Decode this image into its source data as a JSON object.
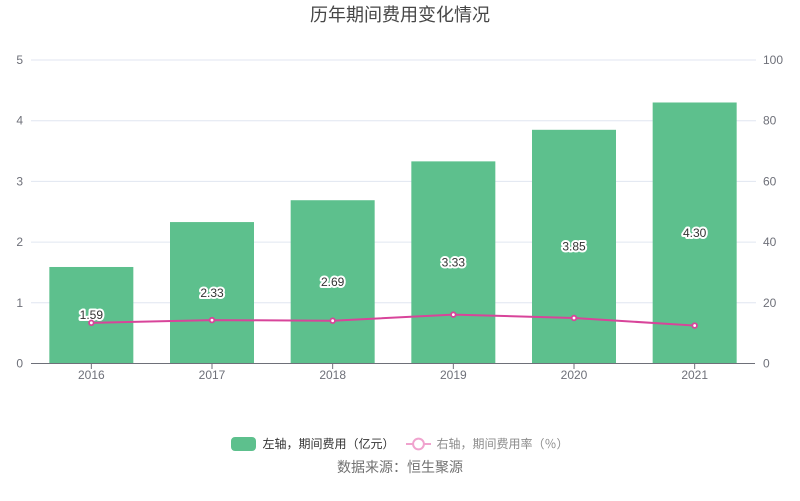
{
  "title": "历年期间费用变化情况",
  "source_note": "数据来源：恒生聚源",
  "colors": {
    "bar": "#5dc08d",
    "line": "#d8449a",
    "line_marker_fill": "#ffffff",
    "legend_line_icon": "#f0a3ce",
    "grid_line": "#e0e6f1",
    "axis_line": "#6e7079",
    "axis_label": "#6e7079",
    "title_text": "#464646",
    "bar_value_label": "#333333",
    "legend_text_bar": "#333333",
    "legend_text_line": "#8c8c8c",
    "source_text": "#717171"
  },
  "legend": {
    "items": [
      {
        "label": "左轴，期间费用（亿元）",
        "icon": "bar-swatch"
      },
      {
        "label": "右轴，期间费用率（％）",
        "icon": "line-marker"
      }
    ]
  },
  "chart_data": {
    "type": "bar+line",
    "title": "历年期间费用变化情况",
    "categories": [
      "2016",
      "2017",
      "2018",
      "2019",
      "2020",
      "2021"
    ],
    "series": [
      {
        "name": "左轴，期间费用（亿元）",
        "type": "bar",
        "axis": "left",
        "values": [
          1.59,
          2.33,
          2.69,
          3.33,
          3.85,
          4.3
        ],
        "labels": [
          "1.59",
          "2.33",
          "2.69",
          "3.33",
          "3.85",
          "4.30"
        ]
      },
      {
        "name": "右轴，期间费用率（％）",
        "type": "line",
        "axis": "right",
        "values": [
          13.4,
          14.3,
          14.1,
          16.1,
          15.0,
          12.5
        ]
      }
    ],
    "left_axis": {
      "range": [
        0,
        5
      ],
      "tick_labels": [
        "0",
        "1",
        "2",
        "3",
        "4",
        "5"
      ]
    },
    "right_axis": {
      "range": [
        0,
        100
      ],
      "tick_labels": [
        "0",
        "20",
        "40",
        "60",
        "80",
        "100"
      ]
    },
    "grid": true,
    "legend_position": "bottom"
  }
}
